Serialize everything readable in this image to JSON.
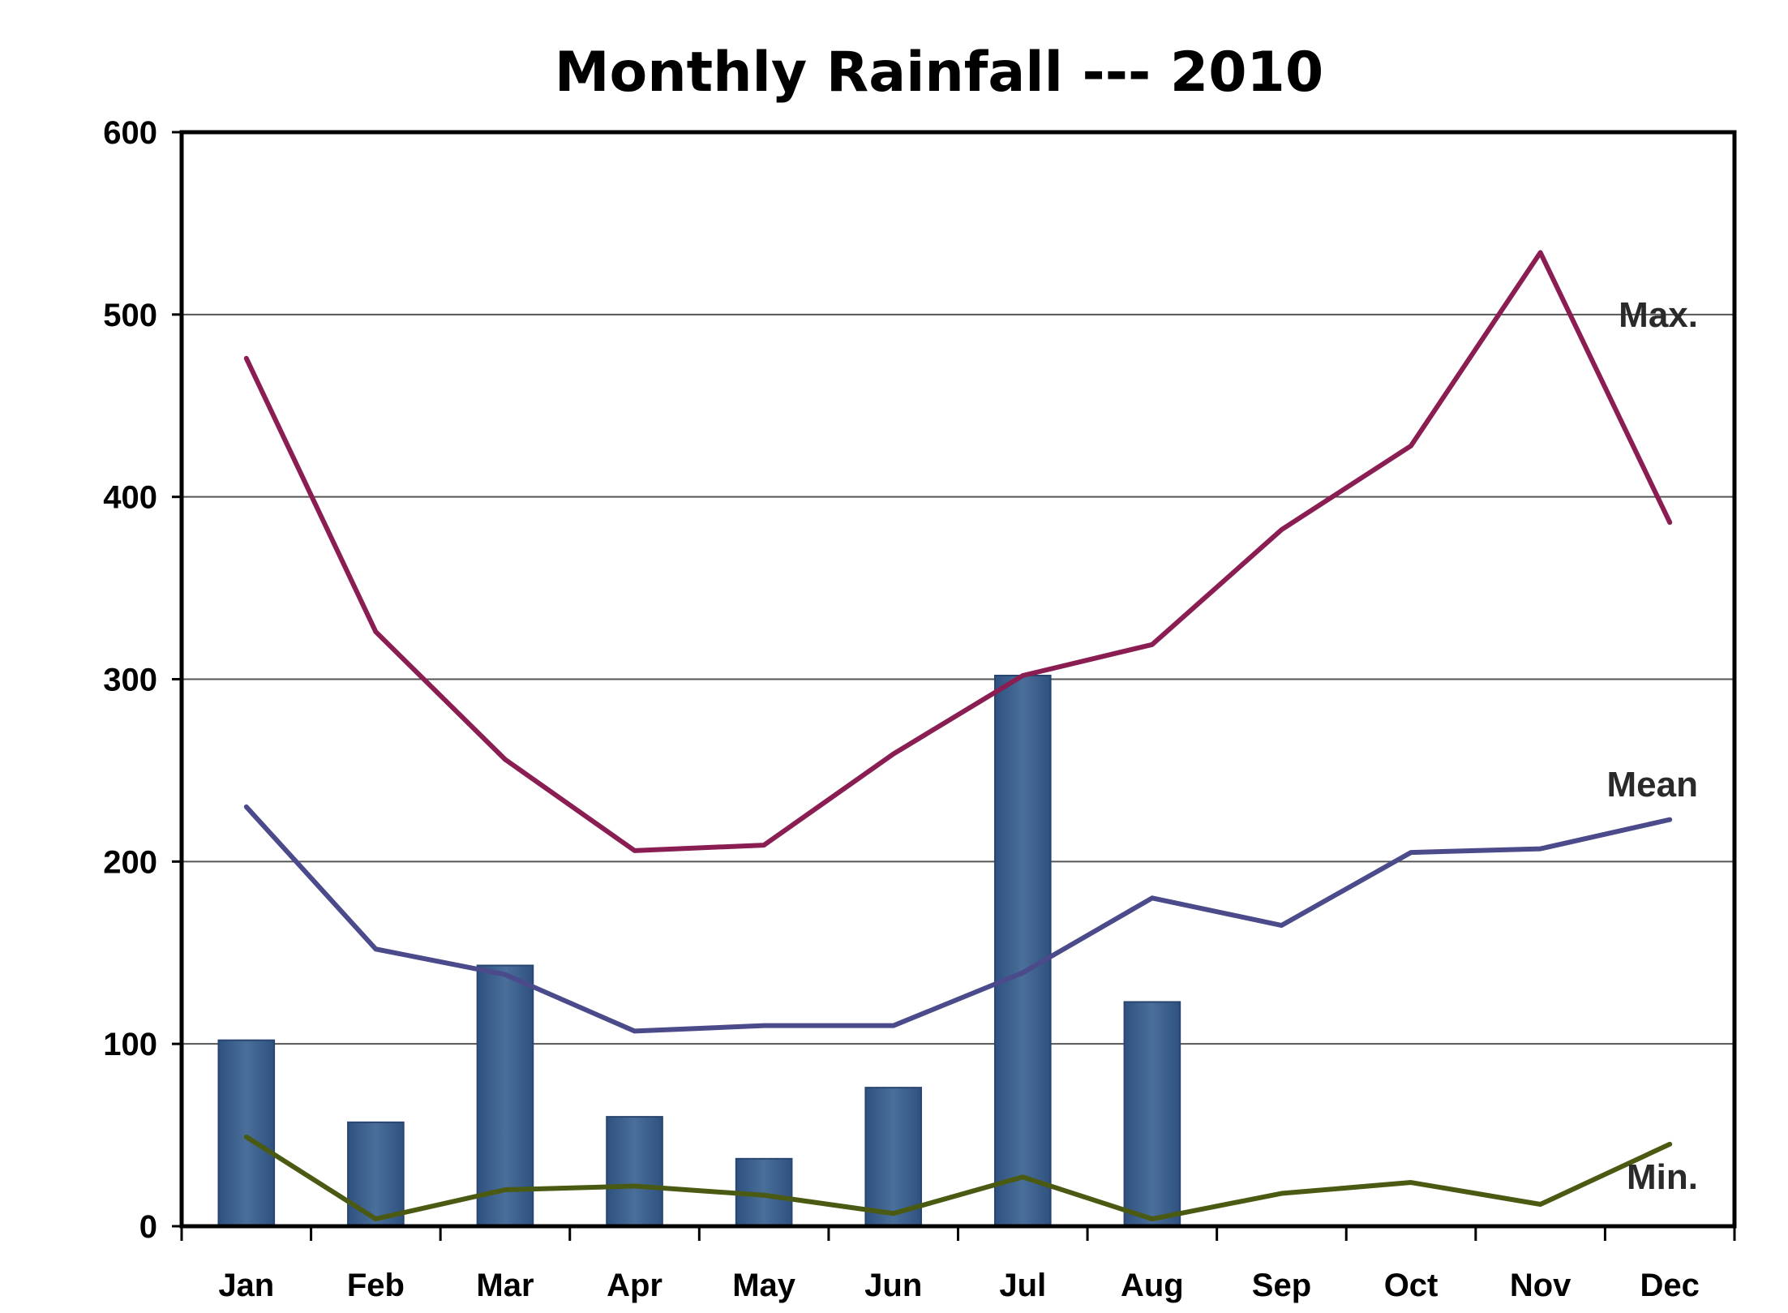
{
  "chart_data": {
    "type": "bar",
    "title": "Monthly Rainfall --- 2010",
    "xlabel": "",
    "ylabel": "",
    "categories": [
      "Jan",
      "Feb",
      "Mar",
      "Apr",
      "May",
      "Jun",
      "Jul",
      "Aug",
      "Sep",
      "Oct",
      "Nov",
      "Dec"
    ],
    "ylim": [
      0,
      600
    ],
    "yticks": [
      "0",
      "100",
      "200",
      "300",
      "400",
      "500",
      "600"
    ],
    "grid": true,
    "bars": {
      "values": [
        102,
        57,
        143,
        60,
        37,
        76,
        302,
        123,
        null,
        null,
        null,
        null
      ],
      "color": "#3f6490"
    },
    "series": [
      {
        "name": "Max.",
        "type": "line",
        "color": "#8a1e52",
        "values": [
          476,
          326,
          256,
          206,
          209,
          259,
          302,
          319,
          382,
          428,
          534,
          386
        ]
      },
      {
        "name": "Mean",
        "type": "line",
        "color": "#4b4a8a",
        "values": [
          230,
          152,
          138,
          107,
          110,
          110,
          139,
          180,
          165,
          205,
          207,
          223
        ]
      },
      {
        "name": "Min.",
        "type": "line",
        "color": "#4a5a12",
        "values": [
          49,
          4,
          20,
          22,
          17,
          7,
          27,
          4,
          18,
          24,
          12,
          45
        ]
      }
    ]
  }
}
